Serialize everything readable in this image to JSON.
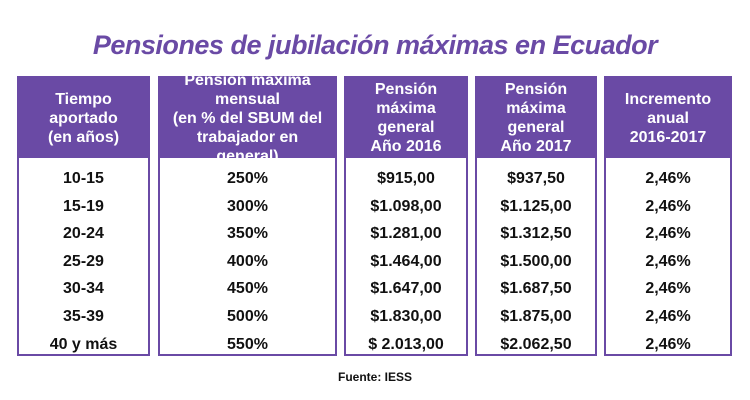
{
  "chart_data": {
    "type": "table",
    "title": "Pensiones de jubilación máximas en Ecuador",
    "columns": [
      "Tiempo aportado\n(en años)",
      "Pensión máxima mensual\n(en % del SBUM del\ntrabajador en general)",
      "Pensión máxima\ngeneral\nAño 2016",
      "Pensión máxima\ngeneral\nAño 2017",
      "Incremento anual\n2016-2017"
    ],
    "rows": [
      [
        "10-15",
        "250%",
        "$915,00",
        "$937,50",
        "2,46%"
      ],
      [
        "15-19",
        "300%",
        "$1.098,00",
        "$1.125,00",
        "2,46%"
      ],
      [
        "20-24",
        "350%",
        "$1.281,00",
        "$1.312,50",
        "2,46%"
      ],
      [
        "25-29",
        "400%",
        "$1.464,00",
        "$1.500,00",
        "2,46%"
      ],
      [
        "30-34",
        "450%",
        "$1.647,00",
        "$1.687,50",
        "2,46%"
      ],
      [
        "35-39",
        "500%",
        "$1.830,00",
        "$1.875,00",
        "2,46%"
      ],
      [
        "40 y más",
        "550%",
        "$ 2.013,00",
        "$2.062,50",
        "2,46%"
      ]
    ],
    "source": "Fuente: IESS"
  },
  "colors": {
    "accent": "#6a4aa5",
    "header_text": "#ffffff",
    "cell_text": "#111111"
  }
}
